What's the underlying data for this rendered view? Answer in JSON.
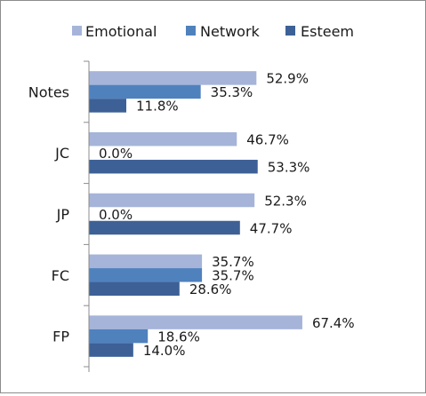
{
  "chart_data": {
    "type": "bar",
    "orientation": "horizontal",
    "categories": [
      "Notes",
      "JC",
      "JP",
      "FC",
      "FP"
    ],
    "series": [
      {
        "name": "Emotional",
        "color": "#a5b4d8",
        "values": [
          52.9,
          46.7,
          52.3,
          35.7,
          67.4
        ],
        "labels": [
          "52.9%",
          "46.7%",
          "52.3%",
          "35.7%",
          "67.4%"
        ]
      },
      {
        "name": "Network",
        "color": "#4f81bd",
        "values": [
          35.3,
          0.0,
          0.0,
          35.7,
          18.6
        ],
        "labels": [
          "35.3%",
          "0.0%",
          "0.0%",
          "35.7%",
          "18.6%"
        ]
      },
      {
        "name": "Esteem",
        "color": "#3d6196",
        "values": [
          11.8,
          53.3,
          47.7,
          28.6,
          14.0
        ],
        "labels": [
          "11.8%",
          "53.3%",
          "47.7%",
          "28.6%",
          "14.0%"
        ]
      }
    ],
    "xlim": [
      0,
      100
    ],
    "grid": false,
    "legend_position": "top"
  }
}
